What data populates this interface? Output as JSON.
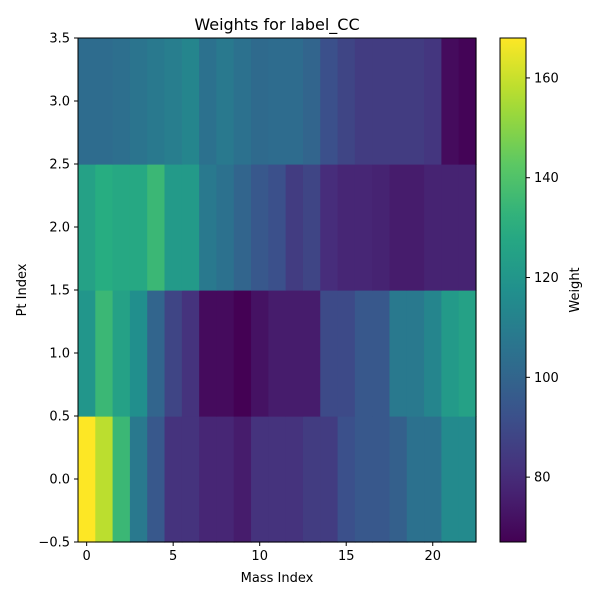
{
  "chart_data": {
    "type": "heatmap",
    "title": "Weights for label_CC",
    "xlabel": "Mass Index",
    "ylabel": "Pt Index",
    "colorbar_label": "Weight",
    "colormap": "viridis",
    "x_categories": [
      0,
      1,
      2,
      3,
      4,
      5,
      6,
      7,
      8,
      9,
      10,
      11,
      12,
      13,
      14,
      15,
      16,
      17,
      18,
      19,
      20,
      21,
      22
    ],
    "y_categories": [
      0,
      1,
      2,
      3
    ],
    "xlim": [
      -0.5,
      22.5
    ],
    "ylim": [
      -0.5,
      3.5
    ],
    "clim": [
      67,
      168
    ],
    "x_ticks": [
      0,
      5,
      10,
      15,
      20
    ],
    "x_tick_labels": [
      "0",
      "5",
      "10",
      "15",
      "20"
    ],
    "y_ticks": [
      -0.5,
      0.0,
      0.5,
      1.0,
      1.5,
      2.0,
      2.5,
      3.0,
      3.5
    ],
    "y_tick_labels": [
      "−0.5",
      "0.0",
      "0.5",
      "1.0",
      "1.5",
      "2.0",
      "2.5",
      "3.0",
      "3.5"
    ],
    "colorbar_ticks": [
      80,
      100,
      120,
      140,
      160
    ],
    "colorbar_tick_labels": [
      "80",
      "100",
      "120",
      "140",
      "160"
    ],
    "values": [
      [
        168,
        158,
        135,
        108,
        95,
        82,
        82,
        78,
        78,
        75,
        82,
        82,
        82,
        85,
        85,
        92,
        95,
        95,
        98,
        105,
        105,
        115,
        115
      ],
      [
        120,
        135,
        125,
        117,
        100,
        88,
        82,
        70,
        70,
        67,
        72,
        75,
        75,
        75,
        90,
        90,
        95,
        95,
        108,
        108,
        113,
        122,
        125
      ],
      [
        125,
        130,
        128,
        128,
        135,
        122,
        122,
        108,
        105,
        100,
        95,
        92,
        85,
        88,
        80,
        78,
        78,
        77,
        75,
        75,
        77,
        77,
        77
      ],
      [
        103,
        103,
        104,
        106,
        108,
        110,
        113,
        105,
        108,
        105,
        102,
        103,
        103,
        100,
        92,
        88,
        85,
        85,
        85,
        85,
        83,
        70,
        68
      ]
    ]
  }
}
